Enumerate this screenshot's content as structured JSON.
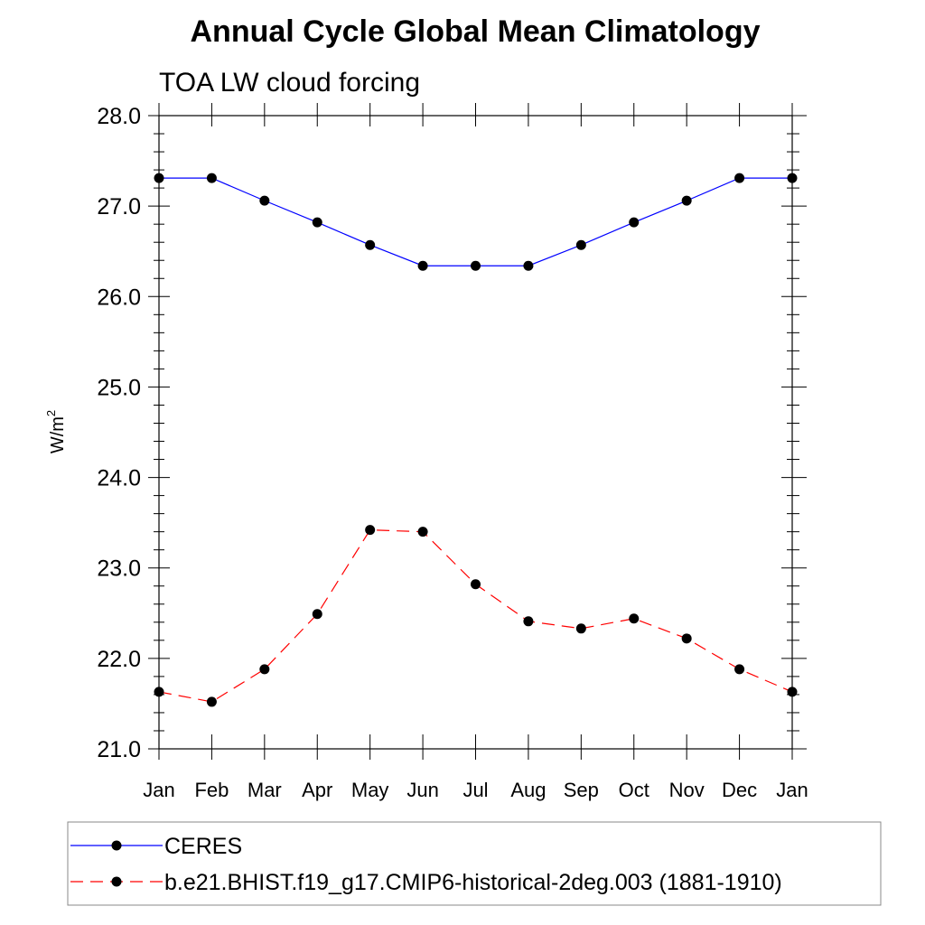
{
  "chart_data": {
    "type": "line",
    "title": "Annual Cycle Global Mean Climatology",
    "subtitle": "TOA LW cloud forcing",
    "ylabel": "W/m",
    "ylabel_sup": "2",
    "xlabel": "",
    "ylim": [
      21.0,
      28.0
    ],
    "yticks": [
      "21.0",
      "22.0",
      "23.0",
      "24.0",
      "25.0",
      "26.0",
      "27.0",
      "28.0"
    ],
    "categories": [
      "Jan",
      "Feb",
      "Mar",
      "Apr",
      "May",
      "Jun",
      "Jul",
      "Aug",
      "Sep",
      "Oct",
      "Nov",
      "Dec",
      "Jan"
    ],
    "grid": false,
    "legend_position": "bottom",
    "series": [
      {
        "name": "CERES",
        "color": "#0000ff",
        "dashed": false,
        "values": [
          27.31,
          27.31,
          27.06,
          26.82,
          26.57,
          26.34,
          26.34,
          26.34,
          26.57,
          26.82,
          27.06,
          27.31,
          27.31
        ]
      },
      {
        "name": "b.e21.BHIST.f19_g17.CMIP6-historical-2deg.003 (1881-1910)",
        "color": "#ff0000",
        "dashed": true,
        "values": [
          21.63,
          21.52,
          21.88,
          22.49,
          23.42,
          23.4,
          22.82,
          22.41,
          22.33,
          22.44,
          22.22,
          21.88,
          21.63
        ]
      }
    ]
  }
}
